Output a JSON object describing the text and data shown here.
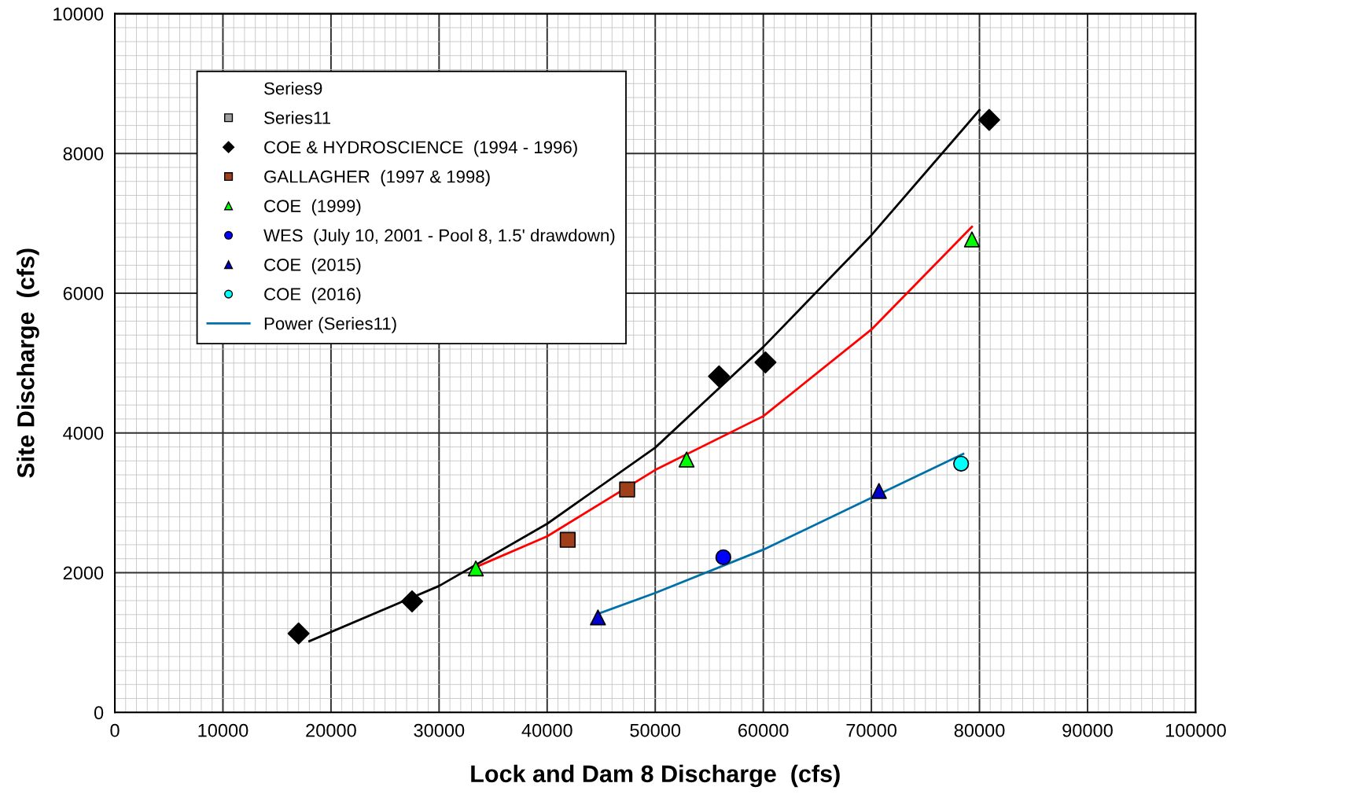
{
  "chart_data": {
    "type": "scatter",
    "xlabel": "Lock and Dam 8 Discharge  (cfs)",
    "ylabel": "Site Discharge  (cfs)",
    "xlim": [
      0,
      100000
    ],
    "ylim": [
      0,
      10000
    ],
    "xticks": [
      0,
      10000,
      20000,
      30000,
      40000,
      50000,
      60000,
      70000,
      80000,
      90000,
      100000
    ],
    "yticks": [
      0,
      2000,
      4000,
      6000,
      8000,
      10000
    ],
    "grid": true,
    "legend": "top left",
    "series": [
      {
        "name": "Series9",
        "type": "line",
        "marker": "none"
      },
      {
        "name": "Series11",
        "marker": "square",
        "color": "#a0a0a0"
      },
      {
        "name": "COE & HYDROSCIENCE  (1994 - 1996)",
        "marker": "diamond",
        "color": "#000000",
        "x": [
          17000,
          27500,
          55900,
          60200,
          80900
        ],
        "values": [
          1130,
          1590,
          4810,
          5010,
          8480
        ]
      },
      {
        "name": "GALLAGHER  (1997 & 1998)",
        "marker": "square",
        "color": "#a0401a",
        "x": [
          41900,
          47400
        ],
        "values": [
          2470,
          3190
        ]
      },
      {
        "name": "COE  (1999)",
        "marker": "triangle",
        "color": "#00ff00",
        "x": [
          33400,
          52900,
          79300
        ],
        "values": [
          2060,
          3620,
          6770
        ]
      },
      {
        "name": "WES  (July 10, 2001 - Pool 8, 1.5' drawdown)",
        "marker": "circle",
        "color": "#0000ff",
        "x": [
          56300
        ],
        "values": [
          2220
        ]
      },
      {
        "name": "COE  (2015)",
        "marker": "triangle",
        "color": "#0000cc",
        "x": [
          44700,
          70700
        ],
        "values": [
          1360,
          3170
        ]
      },
      {
        "name": "COE  (2016)",
        "marker": "circle",
        "color": "#00ffff",
        "x": [
          78300
        ],
        "values": [
          3560
        ]
      },
      {
        "name": "Power (Series11)",
        "type": "line",
        "marker": "none",
        "color": "#0070a8",
        "x": [
          44700,
          50000,
          60000,
          70000,
          78500
        ],
        "values": [
          1410,
          1710,
          2330,
          3070,
          3700
        ]
      },
      {
        "type": "line",
        "marker": "none",
        "color": "#000000",
        "x": [
          18000,
          30000,
          40000,
          50000,
          60000,
          70000,
          80000
        ],
        "values": [
          1020,
          1810,
          2700,
          3790,
          5230,
          6830,
          8620
        ]
      },
      {
        "type": "line",
        "marker": "none",
        "color": "#ff0000",
        "x": [
          33400,
          40000,
          50000,
          60000,
          70000,
          79300
        ],
        "values": [
          2080,
          2520,
          3470,
          4240,
          5480,
          6950
        ]
      }
    ]
  }
}
